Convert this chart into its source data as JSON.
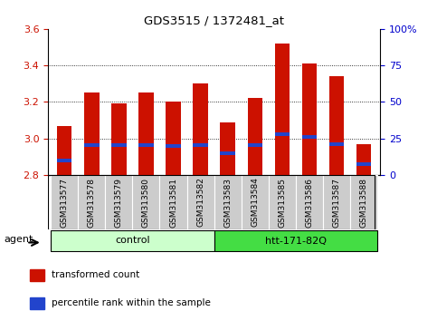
{
  "title": "GDS3515 / 1372481_at",
  "samples": [
    "GSM313577",
    "GSM313578",
    "GSM313579",
    "GSM313580",
    "GSM313581",
    "GSM313582",
    "GSM313583",
    "GSM313584",
    "GSM313585",
    "GSM313586",
    "GSM313587",
    "GSM313588"
  ],
  "transformed_counts": [
    3.07,
    3.25,
    3.19,
    3.25,
    3.2,
    3.3,
    3.09,
    3.22,
    3.52,
    3.41,
    3.34,
    2.97
  ],
  "percentile_positions": [
    2.878,
    2.963,
    2.963,
    2.963,
    2.96,
    2.963,
    2.918,
    2.963,
    3.025,
    3.01,
    2.968,
    2.858
  ],
  "ylim_left": [
    2.8,
    3.6
  ],
  "ylim_right": [
    0,
    100
  ],
  "yticks_left": [
    2.8,
    3.0,
    3.2,
    3.4,
    3.6
  ],
  "yticks_right": [
    0,
    25,
    50,
    75,
    100
  ],
  "groups": [
    {
      "label": "control",
      "start": 0,
      "end": 5,
      "color": "#ccffcc"
    },
    {
      "label": "htt-171-82Q",
      "start": 6,
      "end": 11,
      "color": "#44dd44"
    }
  ],
  "agent_label": "agent",
  "bar_color": "#cc1100",
  "percentile_color": "#2244cc",
  "bar_width": 0.55,
  "bg_color": "#cccccc",
  "plot_bg": "#ffffff",
  "grid_color": "#000000",
  "left_tick_color": "#cc1100",
  "right_tick_color": "#0000cc",
  "legend_items": [
    {
      "label": "transformed count",
      "color": "#cc1100"
    },
    {
      "label": "percentile rank within the sample",
      "color": "#2244cc"
    }
  ]
}
